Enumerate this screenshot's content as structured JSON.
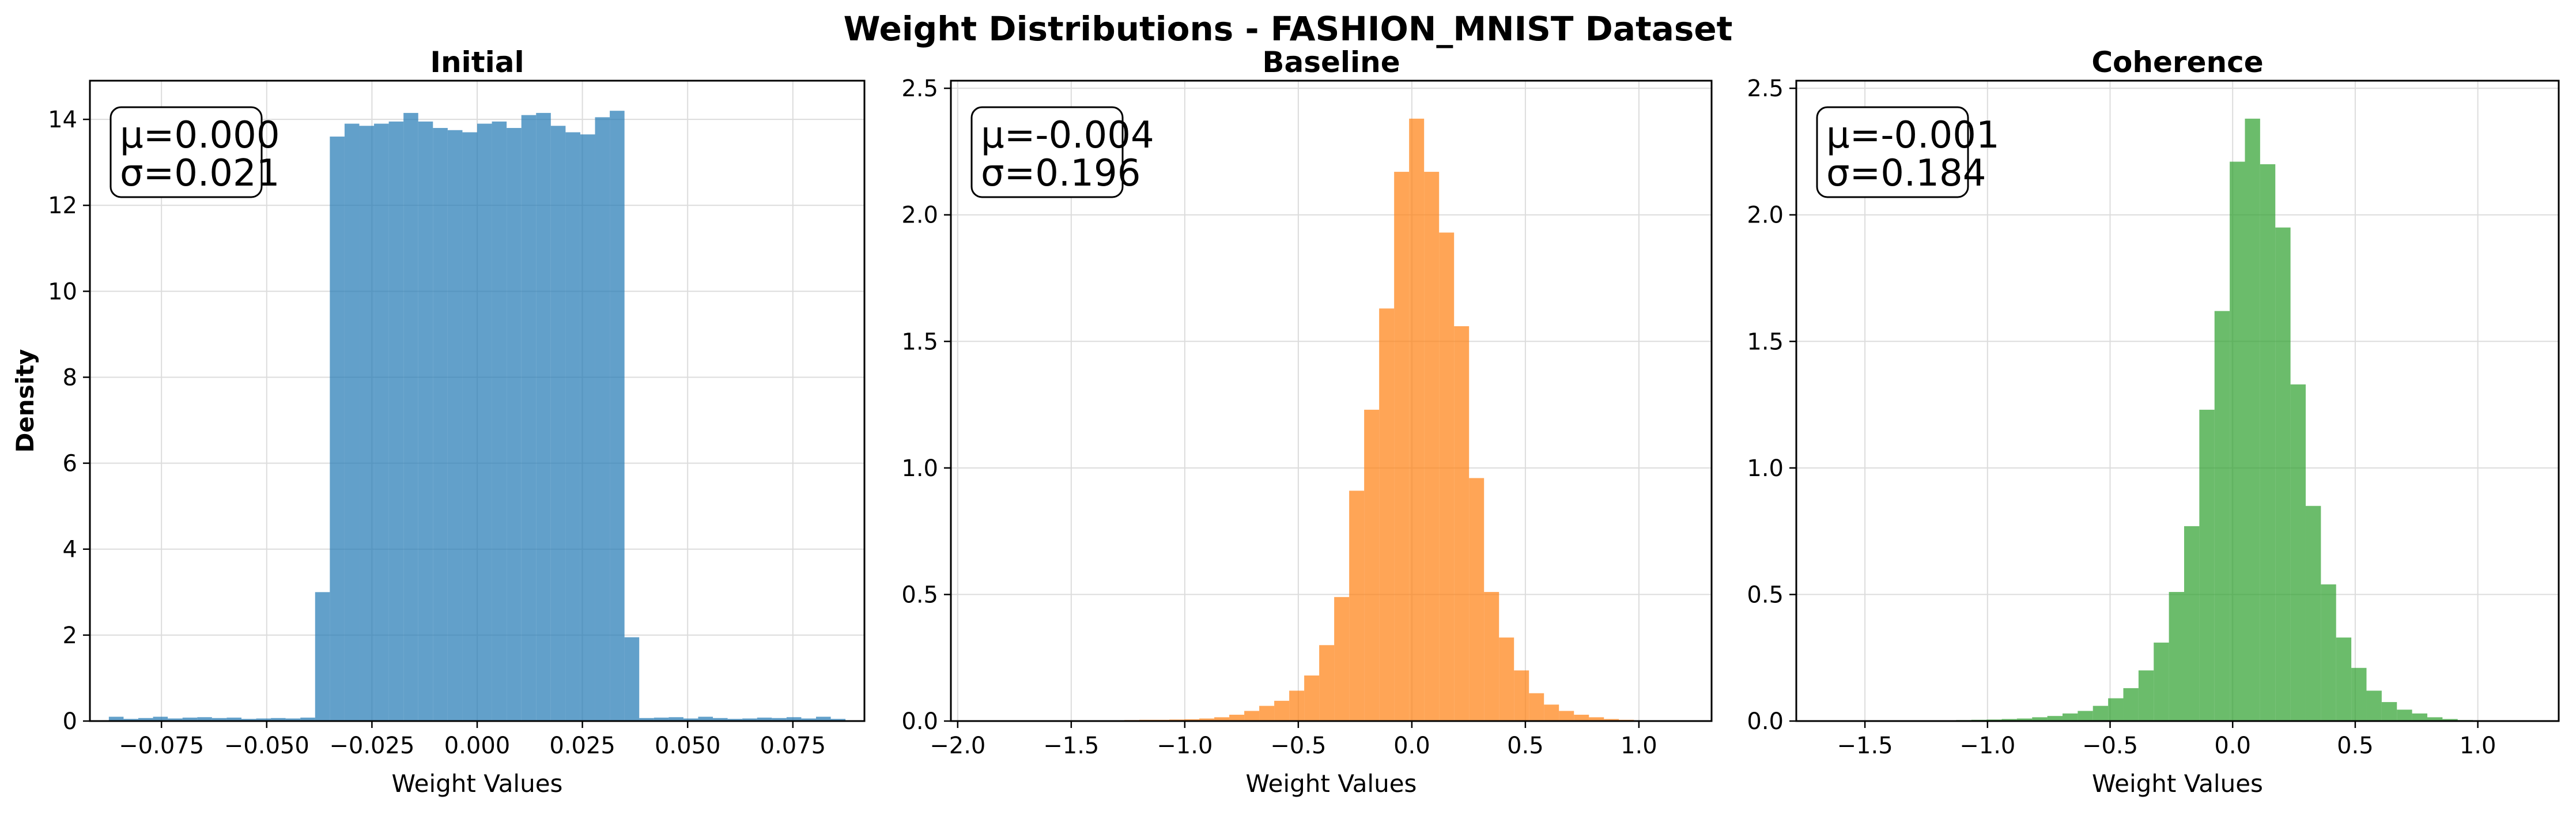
{
  "figure": {
    "title": "Weight Distributions - FASHION_MNIST Dataset"
  },
  "chart_data": [
    {
      "type": "histogram",
      "title": "Initial",
      "xlabel": "Weight Values",
      "ylabel": "Density",
      "xlim": [
        -0.092,
        0.092
      ],
      "ylim": [
        0,
        14.9
      ],
      "xticks": [
        -0.075,
        -0.05,
        -0.025,
        0.0,
        0.025,
        0.05,
        0.075
      ],
      "yticks": [
        0,
        2,
        4,
        6,
        8,
        10,
        12,
        14
      ],
      "grid": true,
      "color": "#1f77b4",
      "bin_width": 0.0035,
      "bins": [
        [
          -0.0875,
          0.1
        ],
        [
          -0.084,
          0.05
        ],
        [
          -0.0805,
          0.07
        ],
        [
          -0.077,
          0.1
        ],
        [
          -0.0735,
          0.06
        ],
        [
          -0.07,
          0.08
        ],
        [
          -0.0665,
          0.09
        ],
        [
          -0.063,
          0.07
        ],
        [
          -0.0595,
          0.08
        ],
        [
          -0.056,
          0.05
        ],
        [
          -0.0525,
          0.06
        ],
        [
          -0.049,
          0.07
        ],
        [
          -0.0455,
          0.06
        ],
        [
          -0.042,
          0.08
        ],
        [
          -0.0385,
          3.0
        ],
        [
          -0.035,
          13.6
        ],
        [
          -0.0315,
          13.9
        ],
        [
          -0.028,
          13.85
        ],
        [
          -0.0245,
          13.9
        ],
        [
          -0.021,
          13.95
        ],
        [
          -0.0175,
          14.15
        ],
        [
          -0.014,
          13.95
        ],
        [
          -0.0105,
          13.8
        ],
        [
          -0.007,
          13.75
        ],
        [
          -0.0035,
          13.7
        ],
        [
          0.0,
          13.9
        ],
        [
          0.0035,
          13.95
        ],
        [
          0.007,
          13.8
        ],
        [
          0.0105,
          14.1
        ],
        [
          0.014,
          14.15
        ],
        [
          0.0175,
          13.85
        ],
        [
          0.021,
          13.7
        ],
        [
          0.0245,
          13.65
        ],
        [
          0.028,
          14.05
        ],
        [
          0.0315,
          14.2
        ],
        [
          0.035,
          1.95
        ],
        [
          0.0385,
          0.07
        ],
        [
          0.042,
          0.08
        ],
        [
          0.0455,
          0.09
        ],
        [
          0.049,
          0.06
        ],
        [
          0.0525,
          0.1
        ],
        [
          0.056,
          0.07
        ],
        [
          0.0595,
          0.05
        ],
        [
          0.063,
          0.06
        ],
        [
          0.0665,
          0.08
        ],
        [
          0.07,
          0.07
        ],
        [
          0.0735,
          0.09
        ],
        [
          0.077,
          0.06
        ],
        [
          0.0805,
          0.1
        ],
        [
          0.084,
          0.05
        ]
      ],
      "stats": {
        "mu": "μ=0.000",
        "sigma": "σ=0.021"
      }
    },
    {
      "type": "histogram",
      "title": "Baseline",
      "xlabel": "Weight Values",
      "xlim": [
        -2.03,
        1.32
      ],
      "ylim": [
        0,
        2.53
      ],
      "xticks": [
        -2.0,
        -1.5,
        -1.0,
        -0.5,
        0.0,
        0.5,
        1.0
      ],
      "yticks": [
        0.0,
        0.5,
        1.0,
        1.5,
        2.0,
        2.5
      ],
      "grid": true,
      "color": "#ff7f0e",
      "bin_width": 0.066,
      "bins": [
        [
          -1.53,
          0.002
        ],
        [
          -1.464,
          0.002
        ],
        [
          -1.398,
          0.003
        ],
        [
          -1.332,
          0.003
        ],
        [
          -1.266,
          0.004
        ],
        [
          -1.2,
          0.005
        ],
        [
          -1.134,
          0.005
        ],
        [
          -1.068,
          0.006
        ],
        [
          -1.002,
          0.007
        ],
        [
          -0.936,
          0.01
        ],
        [
          -0.87,
          0.015
        ],
        [
          -0.804,
          0.025
        ],
        [
          -0.738,
          0.04
        ],
        [
          -0.672,
          0.06
        ],
        [
          -0.606,
          0.08
        ],
        [
          -0.54,
          0.12
        ],
        [
          -0.474,
          0.18
        ],
        [
          -0.408,
          0.3
        ],
        [
          -0.342,
          0.49
        ],
        [
          -0.276,
          0.91
        ],
        [
          -0.21,
          1.23
        ],
        [
          -0.144,
          1.63
        ],
        [
          -0.078,
          2.17
        ],
        [
          -0.012,
          2.38
        ],
        [
          0.054,
          2.17
        ],
        [
          0.12,
          1.93
        ],
        [
          0.186,
          1.56
        ],
        [
          0.252,
          0.96
        ],
        [
          0.318,
          0.51
        ],
        [
          0.384,
          0.33
        ],
        [
          0.45,
          0.2
        ],
        [
          0.516,
          0.11
        ],
        [
          0.582,
          0.065
        ],
        [
          0.648,
          0.04
        ],
        [
          0.714,
          0.025
        ],
        [
          0.78,
          0.015
        ],
        [
          0.846,
          0.008
        ],
        [
          0.912,
          0.005
        ],
        [
          0.978,
          0.003
        ],
        [
          1.044,
          0.002
        ],
        [
          1.11,
          0.001
        ],
        [
          1.176,
          0.001
        ],
        [
          1.242,
          0.001
        ]
      ],
      "stats": {
        "mu": "μ=-0.004",
        "sigma": "σ=0.196"
      }
    },
    {
      "type": "histogram",
      "title": "Coherence",
      "xlabel": "Weight Values",
      "xlim": [
        -1.78,
        1.33
      ],
      "ylim": [
        0,
        2.53
      ],
      "xticks": [
        -1.5,
        -1.0,
        -0.5,
        0.0,
        0.5,
        1.0
      ],
      "yticks": [
        0.0,
        0.5,
        1.0,
        1.5,
        2.0,
        2.5
      ],
      "grid": true,
      "color": "#2ca02c",
      "bin_width": 0.062,
      "bins": [
        [
          -1.5,
          0.001
        ],
        [
          -1.438,
          0.001
        ],
        [
          -1.376,
          0.002
        ],
        [
          -1.314,
          0.002
        ],
        [
          -1.252,
          0.003
        ],
        [
          -1.19,
          0.003
        ],
        [
          -1.128,
          0.004
        ],
        [
          -1.066,
          0.005
        ],
        [
          -1.004,
          0.006
        ],
        [
          -0.942,
          0.008
        ],
        [
          -0.88,
          0.01
        ],
        [
          -0.818,
          0.015
        ],
        [
          -0.756,
          0.02
        ],
        [
          -0.694,
          0.03
        ],
        [
          -0.632,
          0.04
        ],
        [
          -0.57,
          0.06
        ],
        [
          -0.508,
          0.09
        ],
        [
          -0.446,
          0.13
        ],
        [
          -0.384,
          0.2
        ],
        [
          -0.322,
          0.31
        ],
        [
          -0.26,
          0.51
        ],
        [
          -0.198,
          0.77
        ],
        [
          -0.136,
          1.23
        ],
        [
          -0.074,
          1.62
        ],
        [
          -0.012,
          2.21
        ],
        [
          0.05,
          2.38
        ],
        [
          0.112,
          2.2
        ],
        [
          0.174,
          1.95
        ],
        [
          0.236,
          1.33
        ],
        [
          0.298,
          0.85
        ],
        [
          0.36,
          0.54
        ],
        [
          0.422,
          0.33
        ],
        [
          0.484,
          0.21
        ],
        [
          0.546,
          0.12
        ],
        [
          0.608,
          0.075
        ],
        [
          0.67,
          0.045
        ],
        [
          0.732,
          0.03
        ],
        [
          0.794,
          0.015
        ],
        [
          0.856,
          0.008
        ],
        [
          0.918,
          0.004
        ],
        [
          0.98,
          0.002
        ],
        [
          1.042,
          0.001
        ]
      ],
      "stats": {
        "mu": "μ=-0.001",
        "sigma": "σ=0.184"
      }
    }
  ]
}
